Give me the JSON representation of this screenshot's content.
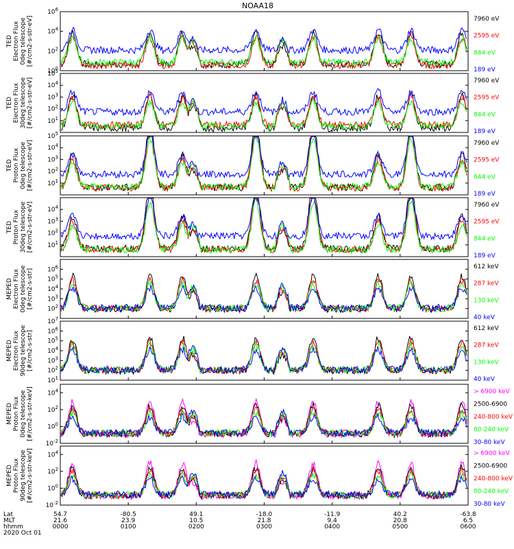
{
  "title": "NOAA18",
  "colors": {
    "black": "#000000",
    "blue": "#0000ff",
    "red": "#ff0000",
    "green": "#00ff00",
    "magenta": "#ff00ff"
  },
  "chart_data": [
    {
      "type": "line",
      "ylabel": [
        "TED",
        "Electron Flux",
        "0deg telescope",
        "[#/cm2-s-str-eV]"
      ],
      "ylog": true,
      "ylim_exp": [
        0,
        6
      ],
      "tick_exps": [
        0,
        2,
        4,
        6
      ],
      "legend": [
        {
          "label": "7960 eV",
          "color": "black"
        },
        {
          "label": "2595 eV",
          "color": "red"
        },
        {
          "label": "844 eV",
          "color": "green"
        },
        {
          "label": "189 eV",
          "color": "blue"
        }
      ]
    },
    {
      "type": "line",
      "ylabel": [
        "TED",
        "Electron Flux",
        "30deg telescope",
        "[#/cm2-s-str-eV]"
      ],
      "ylog": true,
      "ylim_exp": [
        0,
        5
      ],
      "tick_exps": [
        1,
        2,
        3,
        4,
        5
      ],
      "legend": [
        {
          "label": "7960 eV",
          "color": "black"
        },
        {
          "label": "2595 eV",
          "color": "red"
        },
        {
          "label": "844 eV",
          "color": "green"
        },
        {
          "label": "189 eV",
          "color": "blue"
        }
      ]
    },
    {
      "type": "line",
      "ylabel": [
        "TED",
        "Proton Flux",
        "0deg telescope",
        "[#/cm2-s-str-eV]"
      ],
      "ylog": true,
      "ylim_exp": [
        0,
        5
      ],
      "tick_exps": [
        1,
        2,
        3,
        4,
        5
      ],
      "legend": [
        {
          "label": "7960 eV",
          "color": "black"
        },
        {
          "label": "2595 eV",
          "color": "red"
        },
        {
          "label": "844 eV",
          "color": "green"
        },
        {
          "label": "189 eV",
          "color": "blue"
        }
      ]
    },
    {
      "type": "line",
      "ylabel": [
        "TED",
        "Proton Flux",
        "30deg telescope",
        "[#/cm2-s-str-eV]"
      ],
      "ylog": true,
      "ylim_exp": [
        0,
        5
      ],
      "tick_exps": [
        1,
        2,
        3,
        4
      ],
      "legend": [
        {
          "label": "7960 eV",
          "color": "black"
        },
        {
          "label": "2595 eV",
          "color": "red"
        },
        {
          "label": "844 eV",
          "color": "green"
        },
        {
          "label": "189 eV",
          "color": "blue"
        }
      ]
    },
    {
      "type": "line",
      "ylabel": [
        "MEPED",
        "Electron Flux",
        "0deg telescope",
        "[#/cm2-s-str]"
      ],
      "ylog": true,
      "ylim_exp": [
        1,
        7
      ],
      "tick_exps": [
        2,
        3,
        4,
        5,
        6
      ],
      "legend": [
        {
          "label": "612 keV",
          "color": "black"
        },
        {
          "label": "287 keV",
          "color": "red"
        },
        {
          "label": "130 keV",
          "color": "green"
        },
        {
          "label": "40 keV",
          "color": "blue"
        }
      ]
    },
    {
      "type": "line",
      "ylabel": [
        "MEPED",
        "Electron Flux",
        "90deg telescope",
        "[#/cm2-s-str]"
      ],
      "ylog": true,
      "ylim_exp": [
        1,
        7
      ],
      "tick_exps": [
        1,
        2,
        3,
        4,
        5,
        6,
        7
      ],
      "legend": [
        {
          "label": "612 keV",
          "color": "black"
        },
        {
          "label": "287 keV",
          "color": "red"
        },
        {
          "label": "130 keV",
          "color": "green"
        },
        {
          "label": "40 keV",
          "color": "blue"
        }
      ]
    },
    {
      "type": "line",
      "ylabel": [
        "MEPED",
        "Proton Flux",
        "0deg telescope",
        "[#/cm2-s-str-keV]"
      ],
      "ylog": true,
      "ylim_exp": [
        -2,
        5
      ],
      "tick_exps": [
        -2,
        0,
        2,
        4
      ],
      "legend": [
        {
          "label": "> 6900 keV",
          "color": "magenta"
        },
        {
          "label": "2500-6900",
          "color": "black"
        },
        {
          "label": "240-800 keV",
          "color": "red"
        },
        {
          "label": "80-240 keV",
          "color": "green"
        },
        {
          "label": "30-80 keV",
          "color": "blue"
        }
      ]
    },
    {
      "type": "line",
      "ylabel": [
        "MEPED",
        "Proton Flux",
        "90deg telescope",
        "[#/cm2-s-str-keV]"
      ],
      "ylog": true,
      "ylim_exp": [
        -2,
        5
      ],
      "tick_exps": [
        -2,
        0,
        2,
        4
      ],
      "legend": [
        {
          "label": "> 6900 keV",
          "color": "magenta"
        },
        {
          "label": "2500-6900",
          "color": "black"
        },
        {
          "label": "240-800 keV",
          "color": "red"
        },
        {
          "label": "80-240 keV",
          "color": "green"
        },
        {
          "label": "30-80 keV",
          "color": "blue"
        }
      ]
    }
  ],
  "x_axis": {
    "row_labels": [
      "Lat",
      "MLT",
      "hhmm"
    ],
    "date": "2020 Oct 01",
    "ticks": [
      {
        "lat": "54.7",
        "mlt": "21.6",
        "hhmm": "0000"
      },
      {
        "lat": "-80.5",
        "mlt": "23.9",
        "hhmm": "0100"
      },
      {
        "lat": "49.1",
        "mlt": "10.5",
        "hhmm": "0200"
      },
      {
        "lat": "-18.0",
        "mlt": "21.8",
        "hhmm": "0300"
      },
      {
        "lat": "-11.9",
        "mlt": "9.4",
        "hhmm": "0400"
      },
      {
        "lat": "40.2",
        "mlt": "20.8",
        "hhmm": "0500"
      },
      {
        "lat": "-63.8",
        "mlt": "6.5",
        "hhmm": "0600"
      }
    ]
  }
}
